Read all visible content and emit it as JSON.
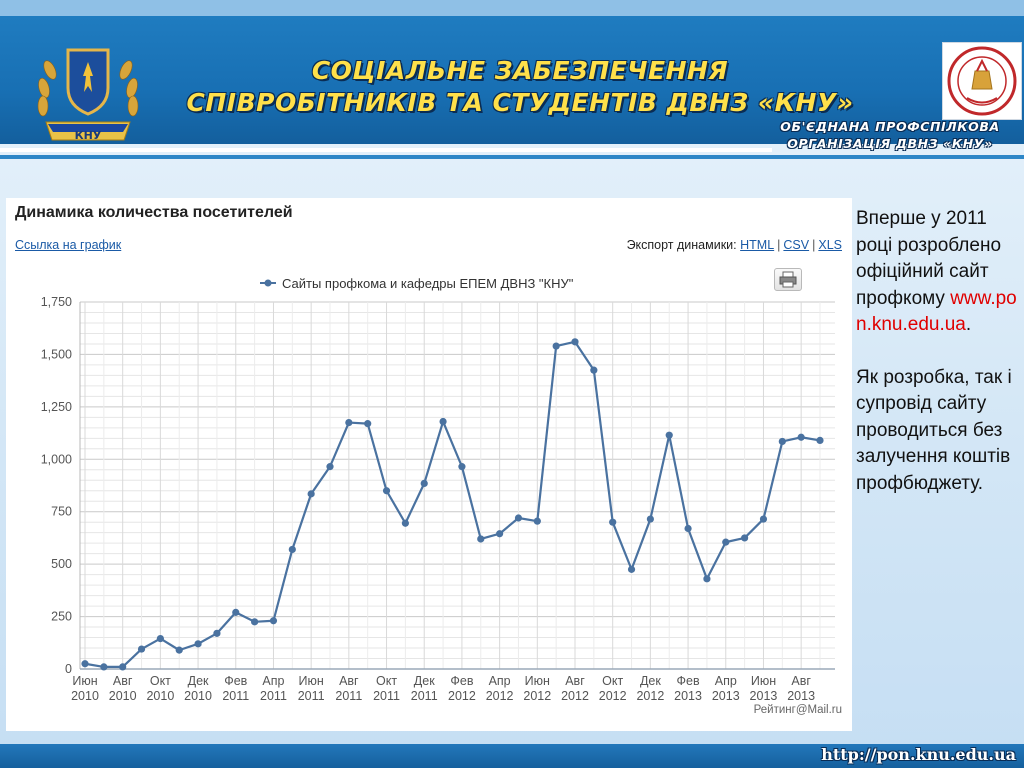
{
  "header": {
    "title_line1": "СОЦІАЛЬНЕ ЗАБЕЗПЕЧЕННЯ",
    "title_line2": "СПІВРОБІТНИКІВ ТА СТУДЕНТІВ ДВНЗ  «КНУ»",
    "emblem_text": "КНУ",
    "org_line1": "ОБ'ЄДНАНА ПРОФСПІЛКОВА",
    "org_line2": "ОРГАНІЗАЦІЯ  ДВНЗ «КНУ»",
    "title_color": "#ffe04a",
    "banner_color": "#1b74b8"
  },
  "panel": {
    "title": "Динамика количества посетителей",
    "chart_link": "Ссылка на график",
    "export_label": "Экспорт динамики:",
    "export_html": "HTML",
    "export_csv": "CSV",
    "export_xls": "XLS",
    "credit": "Рейтинг@Mail.ru"
  },
  "chart_data": {
    "type": "line",
    "title": "Динамика количества посетителей",
    "legend_position": "top-center",
    "grid": true,
    "ylim": [
      0,
      1750
    ],
    "yticks": [
      0,
      250,
      500,
      750,
      1000,
      1250,
      1500,
      1750
    ],
    "ytick_labels": [
      "0",
      "250",
      "500",
      "750",
      "1,000",
      "1,250",
      "1,500",
      "1,750"
    ],
    "x_tick_labels": [
      [
        "Июн",
        "2010"
      ],
      [
        "Авг",
        "2010"
      ],
      [
        "Окт",
        "2010"
      ],
      [
        "Дек",
        "2010"
      ],
      [
        "Фев",
        "2011"
      ],
      [
        "Апр",
        "2011"
      ],
      [
        "Июн",
        "2011"
      ],
      [
        "Авг",
        "2011"
      ],
      [
        "Окт",
        "2011"
      ],
      [
        "Дек",
        "2011"
      ],
      [
        "Фев",
        "2012"
      ],
      [
        "Апр",
        "2012"
      ],
      [
        "Июн",
        "2012"
      ],
      [
        "Авг",
        "2012"
      ],
      [
        "Окт",
        "2012"
      ],
      [
        "Дек",
        "2012"
      ],
      [
        "Фев",
        "2013"
      ],
      [
        "Апр",
        "2013"
      ],
      [
        "Июн",
        "2013"
      ],
      [
        "Авг",
        "2013"
      ]
    ],
    "x": [
      "2010-06",
      "2010-07",
      "2010-08",
      "2010-09",
      "2010-10",
      "2010-11",
      "2010-12",
      "2011-01",
      "2011-02",
      "2011-03",
      "2011-04",
      "2011-05",
      "2011-06",
      "2011-07",
      "2011-08",
      "2011-09",
      "2011-10",
      "2011-11",
      "2011-12",
      "2012-01",
      "2012-02",
      "2012-03",
      "2012-04",
      "2012-05",
      "2012-06",
      "2012-07",
      "2012-08",
      "2012-09",
      "2012-10",
      "2012-11",
      "2012-12",
      "2013-01",
      "2013-02",
      "2013-03",
      "2013-04",
      "2013-05",
      "2013-06",
      "2013-07",
      "2013-08",
      "2013-09"
    ],
    "series": [
      {
        "name": "Сайты профкома и кафедры ЕПЕМ ДВНЗ \"КНУ\"",
        "color": "#4a72a0",
        "values": [
          25,
          10,
          10,
          95,
          145,
          90,
          120,
          170,
          270,
          225,
          230,
          570,
          835,
          965,
          1175,
          1170,
          850,
          695,
          885,
          1180,
          965,
          620,
          645,
          720,
          705,
          1540,
          1560,
          1425,
          700,
          475,
          715,
          1115,
          670,
          430,
          605,
          625,
          715,
          1085,
          1105,
          1090
        ]
      }
    ]
  },
  "side_text": {
    "para1_before": "Вперше у 2011 році розроблено офіційний сайт профкому ",
    "para1_url": "www.pon.knu.edu.ua",
    "para1_after": ".",
    "para2": "Як розробка, так і супровід сайту проводиться без залучення коштів профбюджету."
  },
  "footer": {
    "url": "http://pon.knu.edu.ua"
  }
}
